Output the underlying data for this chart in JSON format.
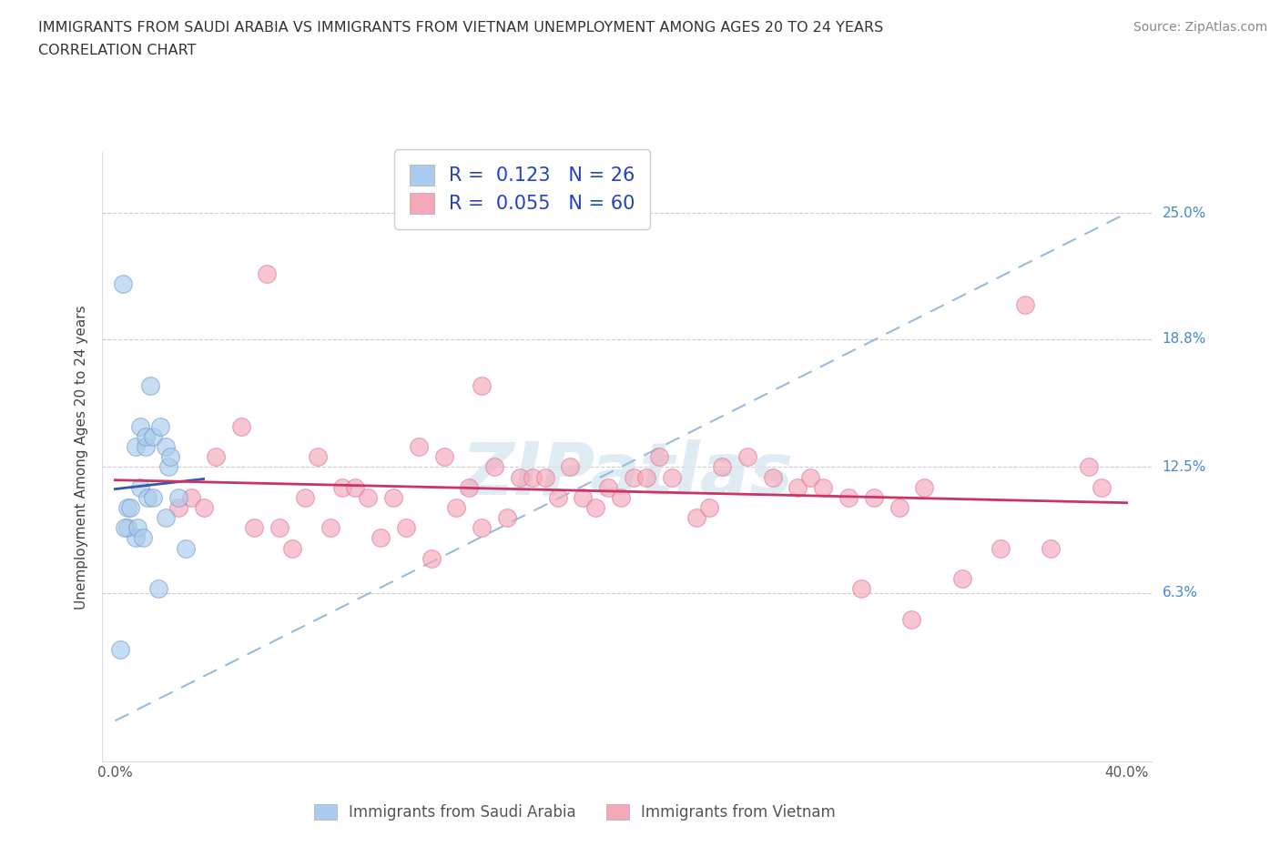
{
  "title_line1": "IMMIGRANTS FROM SAUDI ARABIA VS IMMIGRANTS FROM VIETNAM UNEMPLOYMENT AMONG AGES 20 TO 24 YEARS",
  "title_line2": "CORRELATION CHART",
  "source": "Source: ZipAtlas.com",
  "ylabel": "Unemployment Among Ages 20 to 24 years",
  "xlim": [
    -0.5,
    41
  ],
  "ylim": [
    -2,
    28
  ],
  "ytick_values": [
    6.3,
    12.5,
    18.8,
    25.0
  ],
  "ytick_labels": [
    "6.3%",
    "12.5%",
    "18.8%",
    "25.0%"
  ],
  "saudi_color": "#aaccee",
  "vietnam_color": "#f4a8b8",
  "saudi_edge": "#7799cc",
  "vietnam_edge": "#dd7799",
  "diagonal_color": "#99bbdd",
  "trend_saudi_color": "#3355aa",
  "trend_vietnam_color": "#cc3366",
  "watermark_text": "ZIPatlas",
  "legend_labels": [
    "R =  0.123   N = 26",
    "R =  0.055   N = 60"
  ],
  "bottom_legend": [
    "Immigrants from Saudi Arabia",
    "Immigrants from Vietnam"
  ],
  "saudi_x": [
    0.3,
    0.5,
    0.5,
    0.8,
    0.8,
    1.0,
    1.0,
    1.2,
    1.2,
    1.3,
    1.4,
    1.5,
    1.5,
    1.7,
    1.8,
    2.0,
    2.0,
    2.1,
    2.2,
    2.5,
    2.8,
    0.2,
    0.4,
    0.6,
    0.9,
    1.1
  ],
  "saudi_y": [
    21.5,
    10.5,
    9.5,
    13.5,
    9.0,
    14.5,
    11.5,
    13.5,
    14.0,
    11.0,
    16.5,
    14.0,
    11.0,
    6.5,
    14.5,
    13.5,
    10.0,
    12.5,
    13.0,
    11.0,
    8.5,
    3.5,
    9.5,
    10.5,
    9.5,
    9.0
  ],
  "vietnam_x": [
    2.5,
    3.0,
    3.5,
    4.0,
    5.0,
    5.5,
    6.0,
    6.5,
    7.0,
    7.5,
    8.0,
    8.5,
    9.0,
    9.5,
    10.0,
    10.5,
    11.0,
    11.5,
    12.0,
    12.5,
    13.0,
    13.5,
    14.0,
    14.5,
    15.0,
    15.5,
    16.0,
    16.5,
    17.0,
    17.5,
    18.0,
    18.5,
    19.0,
    19.5,
    20.0,
    20.5,
    21.0,
    21.5,
    22.0,
    23.0,
    23.5,
    24.0,
    25.0,
    26.0,
    27.0,
    27.5,
    28.0,
    29.0,
    29.5,
    30.0,
    31.0,
    31.5,
    32.0,
    33.5,
    35.0,
    36.0,
    37.0,
    38.5,
    39.0,
    14.5
  ],
  "vietnam_y": [
    10.5,
    11.0,
    10.5,
    13.0,
    14.5,
    9.5,
    22.0,
    9.5,
    8.5,
    11.0,
    13.0,
    9.5,
    11.5,
    11.5,
    11.0,
    9.0,
    11.0,
    9.5,
    13.5,
    8.0,
    13.0,
    10.5,
    11.5,
    9.5,
    12.5,
    10.0,
    12.0,
    12.0,
    12.0,
    11.0,
    12.5,
    11.0,
    10.5,
    11.5,
    11.0,
    12.0,
    12.0,
    13.0,
    12.0,
    10.0,
    10.5,
    12.5,
    13.0,
    12.0,
    11.5,
    12.0,
    11.5,
    11.0,
    6.5,
    11.0,
    10.5,
    5.0,
    11.5,
    7.0,
    8.5,
    20.5,
    8.5,
    12.5,
    11.5,
    16.5
  ]
}
